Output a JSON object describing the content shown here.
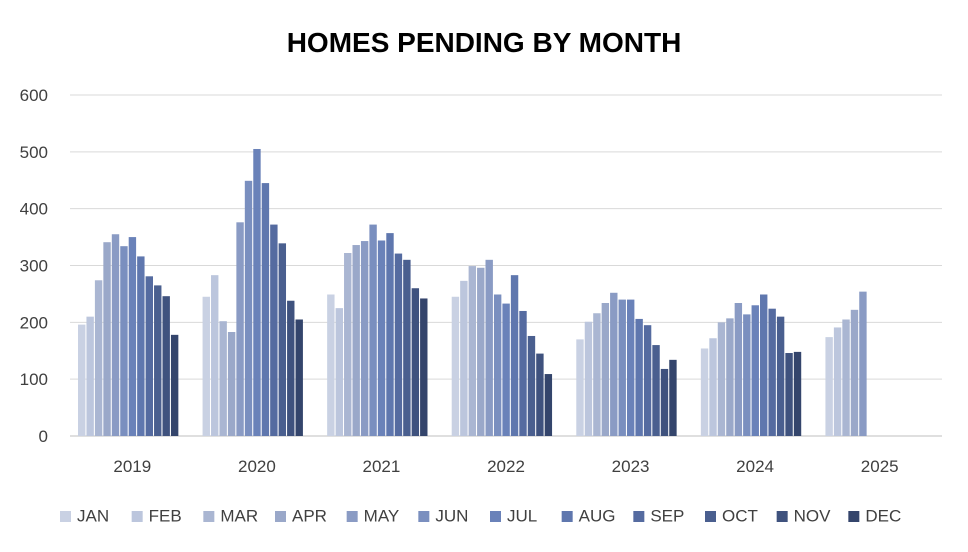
{
  "chart_data": {
    "type": "bar",
    "title": "HOMES PENDING BY MONTH",
    "xlabel": "",
    "ylabel": "",
    "ylim": [
      0,
      600
    ],
    "yticks": [
      "0",
      "100",
      "200",
      "300",
      "400",
      "500",
      "600"
    ],
    "grid": true,
    "legend_position": "bottom",
    "categories": [
      "2019",
      "2020",
      "2021",
      "2022",
      "2023",
      "2024",
      "2025"
    ],
    "series": [
      {
        "name": "JAN",
        "color": "#c9d1e3",
        "values": [
          196,
          245,
          249,
          245,
          170,
          154,
          174
        ]
      },
      {
        "name": "FEB",
        "color": "#bcc6dd",
        "values": [
          210,
          283,
          225,
          273,
          201,
          172,
          191
        ]
      },
      {
        "name": "MAR",
        "color": "#aab6d2",
        "values": [
          274,
          202,
          322,
          299,
          216,
          200,
          205
        ]
      },
      {
        "name": "APR",
        "color": "#9aa8c9",
        "values": [
          341,
          183,
          336,
          296,
          234,
          207,
          222
        ]
      },
      {
        "name": "MAY",
        "color": "#8a9bc4",
        "values": [
          355,
          376,
          343,
          310,
          252,
          234,
          254
        ]
      },
      {
        "name": "JUN",
        "color": "#7a8fbf",
        "values": [
          334,
          449,
          372,
          249,
          240,
          214,
          null
        ]
      },
      {
        "name": "JUL",
        "color": "#6a82b9",
        "values": [
          350,
          505,
          344,
          233,
          240,
          230,
          null
        ]
      },
      {
        "name": "AUG",
        "color": "#5f77ae",
        "values": [
          316,
          445,
          357,
          283,
          206,
          249,
          null
        ]
      },
      {
        "name": "SEP",
        "color": "#556ba0",
        "values": [
          281,
          372,
          321,
          220,
          195,
          224,
          null
        ]
      },
      {
        "name": "OCT",
        "color": "#4a5f8f",
        "values": [
          265,
          339,
          310,
          176,
          160,
          210,
          null
        ]
      },
      {
        "name": "NOV",
        "color": "#3f527e",
        "values": [
          246,
          238,
          260,
          145,
          118,
          146,
          null
        ]
      },
      {
        "name": "DEC",
        "color": "#34456c",
        "values": [
          178,
          205,
          242,
          109,
          134,
          148,
          null
        ]
      }
    ]
  }
}
